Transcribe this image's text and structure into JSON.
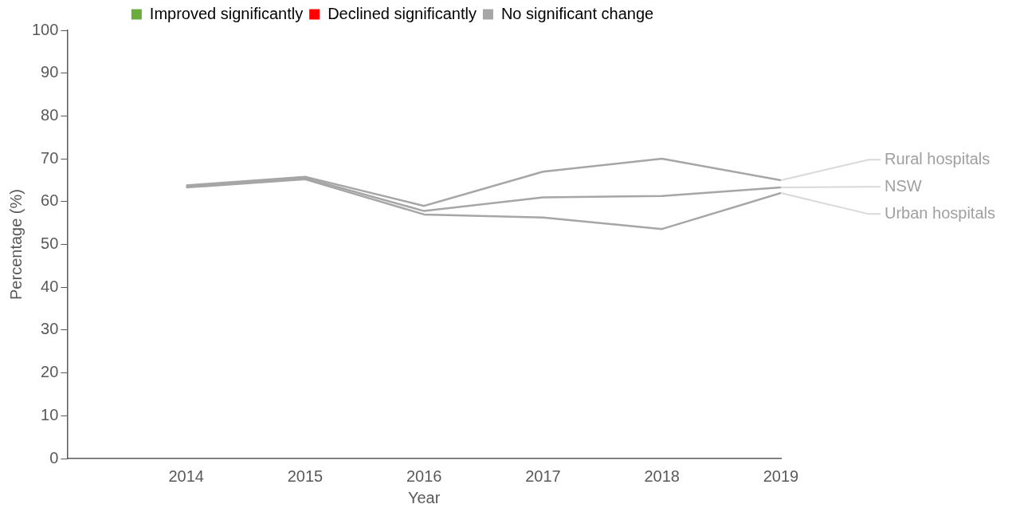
{
  "chart_data": {
    "type": "line",
    "xlabel": "Year",
    "ylabel": "Percentage (%)",
    "x": [
      2014,
      2015,
      2016,
      2017,
      2018,
      2019
    ],
    "xlim": [
      2013,
      2019
    ],
    "xticks": [
      2014,
      2015,
      2016,
      2017,
      2018,
      2019
    ],
    "ylim": [
      0,
      100
    ],
    "yticks": [
      0,
      10,
      20,
      30,
      40,
      50,
      60,
      70,
      80,
      90,
      100
    ],
    "grid": false,
    "legend": "top",
    "marker": "none",
    "line_style": "solid",
    "series": [
      {
        "name": "Improved significantly",
        "color": "#6aad3d",
        "values": [
          null,
          null,
          null,
          null,
          null,
          null
        ]
      },
      {
        "name": "Declined significantly",
        "color": "#ff0000",
        "values": [
          null,
          null,
          null,
          null,
          null,
          null
        ]
      },
      {
        "name": "No significant change",
        "color": "#a6a6a6",
        "values": [
          null,
          null,
          null,
          null,
          null,
          null
        ]
      },
      {
        "name": "Rural hospitals",
        "color": "#a6a6a6",
        "values": [
          63.8,
          65.8,
          59,
          67,
          70,
          65
        ]
      },
      {
        "name": "NSW",
        "color": "#a6a6a6",
        "values": [
          63.5,
          65.5,
          57.8,
          61,
          61.3,
          63.3
        ]
      },
      {
        "name": "Urban hospitals",
        "color": "#a6a6a6",
        "values": [
          63.3,
          65.2,
          57,
          56.3,
          53.6,
          62
        ]
      }
    ]
  }
}
